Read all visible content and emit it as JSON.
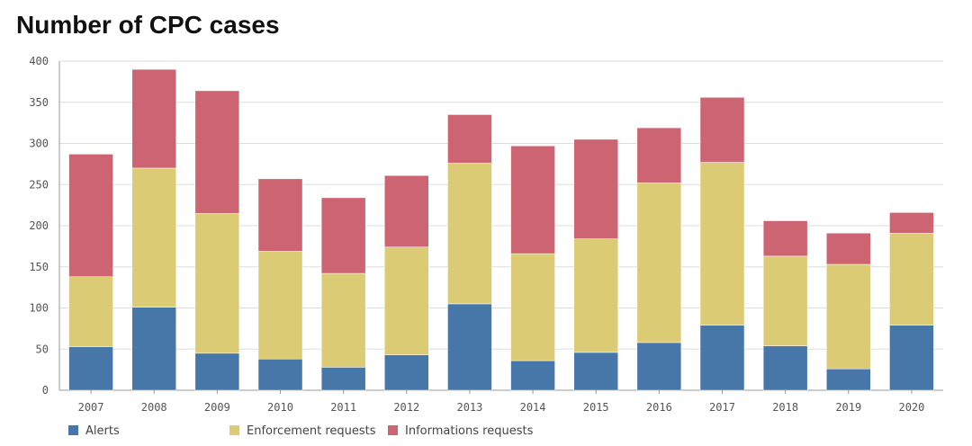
{
  "chart_data": {
    "type": "bar",
    "stacked": true,
    "title": "Number of CPC cases",
    "xlabel": "",
    "ylabel": "",
    "ylim": [
      0,
      400
    ],
    "yticks": [
      0,
      50,
      100,
      150,
      200,
      250,
      300,
      350,
      400
    ],
    "grid": true,
    "legend_position": "bottom-left",
    "categories": [
      "2007",
      "2008",
      "2009",
      "2010",
      "2011",
      "2012",
      "2013",
      "2014",
      "2015",
      "2016",
      "2017",
      "2018",
      "2019",
      "2020"
    ],
    "series": [
      {
        "name": "Alerts",
        "color": "#4677a8",
        "values": [
          53,
          101,
          45,
          38,
          28,
          43,
          105,
          36,
          46,
          58,
          79,
          54,
          26,
          79
        ]
      },
      {
        "name": "Enforcement requests",
        "color": "#dccb75",
        "values": [
          85,
          169,
          170,
          131,
          114,
          131,
          171,
          130,
          138,
          194,
          198,
          109,
          127,
          112
        ]
      },
      {
        "name": "Informations requests",
        "color": "#cc6472",
        "values": [
          149,
          120,
          149,
          88,
          92,
          87,
          59,
          131,
          121,
          67,
          79,
          43,
          38,
          25
        ]
      }
    ]
  }
}
